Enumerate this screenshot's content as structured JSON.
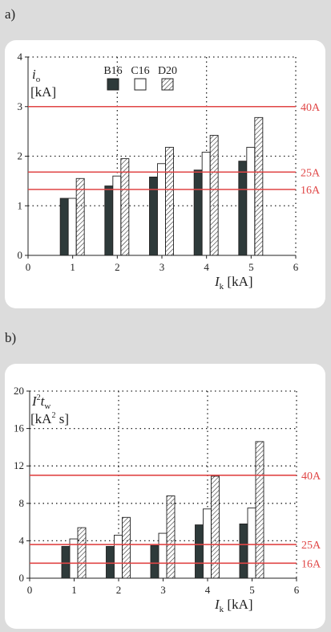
{
  "labels": {
    "a": "a)",
    "b": "b)"
  },
  "chart_data": [
    {
      "type": "bar",
      "panel": "a)",
      "categories": [
        "1",
        "2",
        "3",
        "4",
        "5"
      ],
      "series": [
        {
          "name": "B16",
          "pattern": "solid",
          "values": [
            1.15,
            1.4,
            1.58,
            1.72,
            1.9
          ]
        },
        {
          "name": "C16",
          "pattern": "empty",
          "values": [
            1.15,
            1.6,
            1.85,
            2.08,
            2.18
          ]
        },
        {
          "name": "D20",
          "pattern": "hatch",
          "values": [
            1.55,
            1.95,
            2.18,
            2.42,
            2.78
          ]
        }
      ],
      "xlim": [
        0,
        6
      ],
      "ylim": [
        0,
        4
      ],
      "xticks": [
        "0",
        "1",
        "2",
        "3",
        "4",
        "5",
        "6"
      ],
      "yticks": [
        "0",
        "1",
        "2",
        "3",
        "4"
      ],
      "xlabel": {
        "var": "I",
        "sub": "k",
        "unit": "[kA]"
      },
      "ylabel": {
        "var": "i",
        "sub": "o",
        "unit": "[kA]"
      },
      "reference_lines": [
        {
          "label": "40A",
          "value": 3.0
        },
        {
          "label": "25A",
          "value": 1.68
        },
        {
          "label": "16A",
          "value": 1.33
        }
      ],
      "reference_color": "#e04646",
      "bar_color": "#2e3a3a",
      "grid": "dotted"
    },
    {
      "type": "bar",
      "panel": "b)",
      "categories": [
        "1",
        "2",
        "3",
        "4",
        "5"
      ],
      "series": [
        {
          "name": "B16",
          "pattern": "solid",
          "values": [
            3.4,
            3.4,
            3.5,
            5.7,
            5.8
          ]
        },
        {
          "name": "C16",
          "pattern": "empty",
          "values": [
            4.2,
            4.6,
            4.8,
            7.4,
            7.5
          ]
        },
        {
          "name": "D20",
          "pattern": "hatch",
          "values": [
            5.4,
            6.5,
            8.8,
            10.9,
            14.6
          ]
        }
      ],
      "xlim": [
        0,
        6
      ],
      "ylim": [
        0,
        20
      ],
      "xticks": [
        "0",
        "1",
        "2",
        "3",
        "4",
        "5",
        "6"
      ],
      "yticks": [
        "0",
        "4",
        "8",
        "12",
        "16",
        "20"
      ],
      "xlabel": {
        "var": "I",
        "sub": "k",
        "unit": "[kA]"
      },
      "ylabel": {
        "var": "I",
        "sup": "2",
        "var2": "t",
        "sub": "w",
        "unit": "[kA",
        "unit_sup": "2",
        "unit_tail": "s]"
      },
      "reference_lines": [
        {
          "label": "40A",
          "value": 11.0
        },
        {
          "label": "25A",
          "value": 3.6
        },
        {
          "label": "16A",
          "value": 1.6
        }
      ],
      "reference_color": "#e04646",
      "bar_color": "#2e3a3a",
      "grid": "dotted"
    }
  ]
}
